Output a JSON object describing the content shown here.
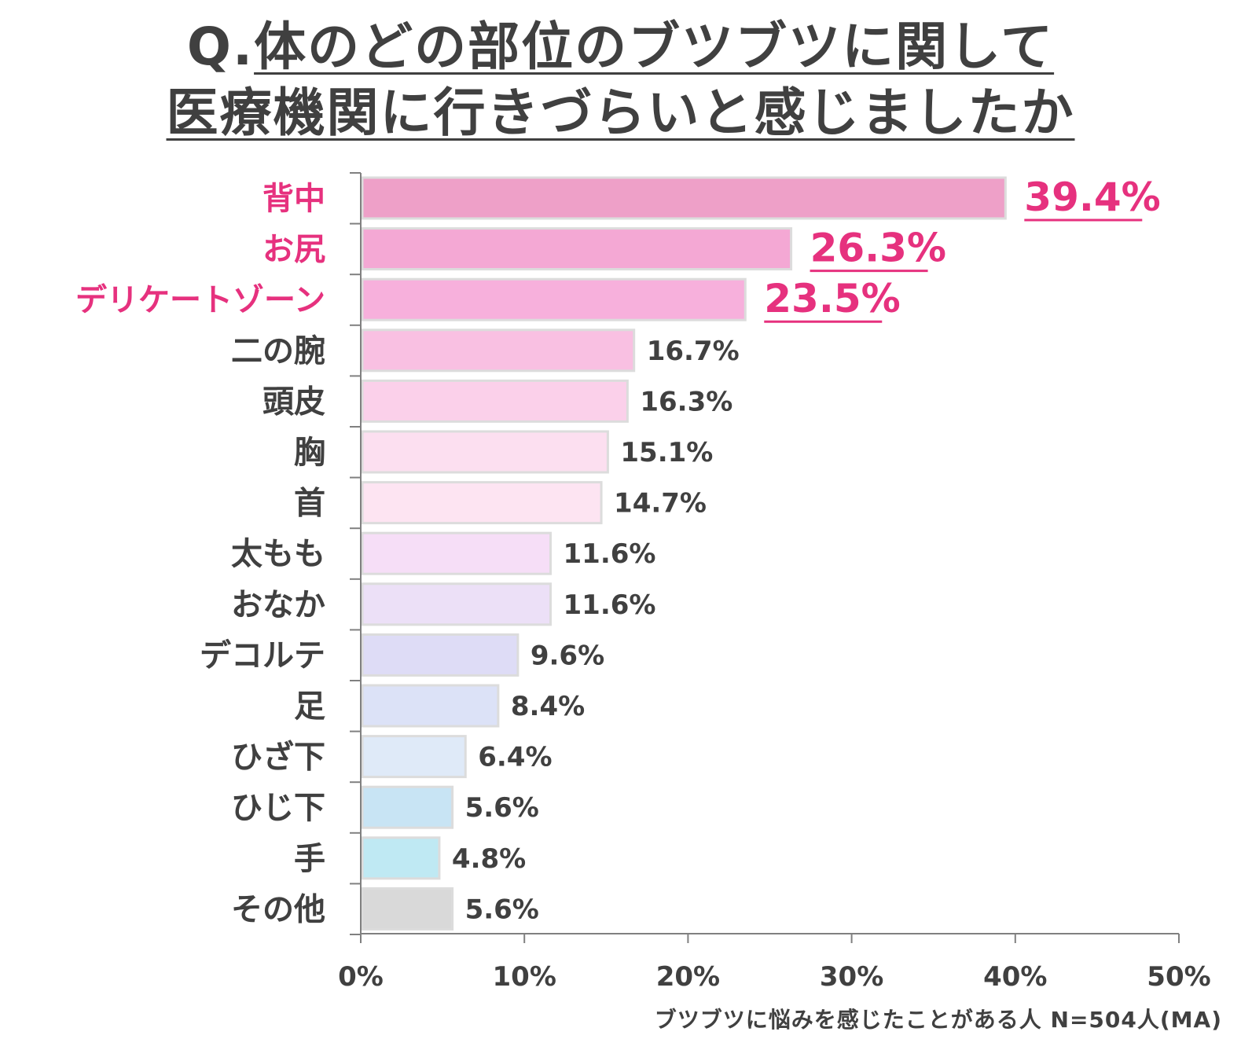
{
  "title": {
    "line1_prefix": "Q.",
    "line1_underlined": "体のどの部位のブツブツに関して",
    "line2": "医療機関に行きづらいと感じましたか"
  },
  "footnote": "ブツブツに悩みを感じたことがある人 N=504人(MA)",
  "chart_data": {
    "type": "bar",
    "orientation": "horizontal",
    "title": "Q.体のどの部位のブツブツに関して医療機関に行きづらいと感じましたか",
    "categories": [
      "背中",
      "お尻",
      "デリケートゾーン",
      "二の腕",
      "頭皮",
      "胸",
      "首",
      "太もも",
      "おなか",
      "デコルテ",
      "足",
      "ひざ下",
      "ひじ下",
      "手",
      "その他"
    ],
    "values": [
      39.4,
      26.3,
      23.5,
      16.7,
      16.3,
      15.1,
      14.7,
      11.6,
      11.6,
      9.6,
      8.4,
      6.4,
      5.6,
      4.8,
      5.6
    ],
    "value_labels": [
      "39.4%",
      "26.3%",
      "23.5%",
      "16.7%",
      "16.3%",
      "15.1%",
      "14.7%",
      "11.6%",
      "11.6%",
      "9.6%",
      "8.4%",
      "6.4%",
      "5.6%",
      "4.8%",
      "5.6%"
    ],
    "highlighted": [
      true,
      true,
      true,
      false,
      false,
      false,
      false,
      false,
      false,
      false,
      false,
      false,
      false,
      false,
      false
    ],
    "bar_colors": [
      "#eea0c8",
      "#f4a8d4",
      "#f7b0dc",
      "#f9c0e2",
      "#fbd0ea",
      "#fcdff0",
      "#fde4f2",
      "#f6def7",
      "#ece0f7",
      "#dedcf6",
      "#dce2f7",
      "#dfeaf8",
      "#c8e4f4",
      "#bfe9f3",
      "#d9d9d9"
    ],
    "highlight_color": "#e6317e",
    "xlim": [
      0,
      50
    ],
    "xticks": [
      0,
      10,
      20,
      30,
      40,
      50
    ],
    "xtick_labels": [
      "0%",
      "10%",
      "20%",
      "30%",
      "40%",
      "50%"
    ],
    "grid": false,
    "legend": "none"
  }
}
